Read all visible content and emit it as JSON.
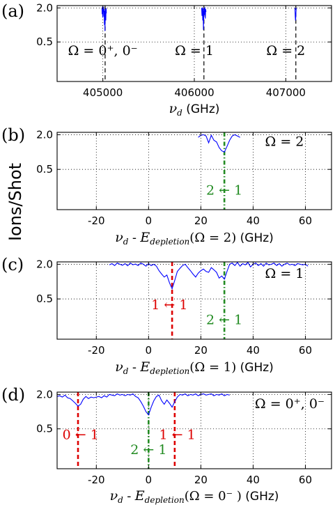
{
  "figure": {
    "ylabel": "Ions/Shot"
  },
  "chart_data": [
    {
      "id": "a",
      "panel_label": "(a)",
      "type": "line",
      "xlim": [
        404500,
        407500
      ],
      "ylim": [
        0.1,
        2.2
      ],
      "yscale": "log",
      "xticks": [
        405000,
        406000,
        407000
      ],
      "xtick_labels": [
        "405000",
        "406000",
        "407000"
      ],
      "yticks": [
        2.0,
        0.5
      ],
      "ytick_labels": [
        "2.0",
        "0.5"
      ],
      "grid": true,
      "xlabel": {
        "var": "ν",
        "sub": "d",
        "rest": " (GHz)"
      },
      "series_color": "#0000ff",
      "series": [
        {
          "x": [
            404990,
            404993,
            404996,
            404999,
            405002,
            405005,
            405008,
            405011,
            405014,
            405017,
            405020,
            405023,
            405026,
            405029,
            405032,
            405035,
            405038
          ],
          "y": [
            2.0,
            1.55,
            2.1,
            1.35,
            2.0,
            1.7,
            2.1,
            1.4,
            1.9,
            1.0,
            1.8,
            0.78,
            1.6,
            1.9,
            1.2,
            2.0,
            1.6
          ]
        },
        {
          "x": [
            406080,
            406084,
            406088,
            406092,
            406096,
            406100,
            406104,
            406108,
            406112,
            406116,
            406120,
            406124,
            406128
          ],
          "y": [
            2.0,
            1.45,
            2.05,
            1.2,
            1.95,
            0.82,
            1.7,
            2.0,
            1.5,
            2.05,
            1.3,
            1.9,
            1.7
          ]
        },
        {
          "x": [
            407100,
            407103,
            407106,
            407109,
            407112,
            407115
          ],
          "y": [
            2.0,
            1.4,
            1.2,
            1.3,
            1.7,
            2.0
          ]
        }
      ],
      "markers": [
        {
          "x": 405025,
          "color": "#000000",
          "style": "dash"
        },
        {
          "x": 406105,
          "color": "#000000",
          "style": "dash"
        },
        {
          "x": 407110,
          "color": "#000000",
          "style": "dash"
        }
      ],
      "annotations": [
        {
          "x": 405000,
          "y": 0.36,
          "text": "Ω = 0⁺, 0⁻",
          "color": "#000000"
        },
        {
          "x": 406000,
          "y": 0.36,
          "text": "Ω = 1",
          "color": "#000000"
        },
        {
          "x": 407000,
          "y": 0.36,
          "text": "Ω = 2",
          "color": "#000000"
        }
      ]
    },
    {
      "id": "b",
      "panel_label": "(b)",
      "type": "line",
      "xlim": [
        -35,
        70
      ],
      "ylim": [
        0.1,
        2.2
      ],
      "yscale": "log",
      "xticks": [
        -20,
        0,
        20,
        40,
        60
      ],
      "xtick_labels": [
        "-20",
        "0",
        "20",
        "40",
        "60"
      ],
      "yticks": [
        2.0,
        0.5
      ],
      "ytick_labels": [
        "2.0",
        "0.5"
      ],
      "grid": true,
      "xlabel": {
        "var": "ν",
        "sub": "d",
        "mid": " - ",
        "var2": "E",
        "sub2": "depletion",
        "arg": "(Ω = 2)",
        "rest": " (GHz)"
      },
      "series_color": "#0000ff",
      "series": [
        {
          "x": [
            19,
            20,
            21,
            22,
            23,
            24,
            25,
            26,
            27,
            28,
            29,
            30,
            31,
            32,
            33,
            34,
            35
          ],
          "y": [
            1.8,
            1.95,
            2.0,
            1.9,
            1.45,
            1.95,
            1.6,
            1.5,
            1.2,
            1.05,
            1.0,
            1.25,
            1.6,
            1.9,
            2.0,
            1.9,
            1.8
          ]
        }
      ],
      "markers": [
        {
          "x": 29,
          "color": "#228b22",
          "style": "dashdot"
        }
      ],
      "annotations": [
        {
          "x": 29,
          "y": 0.22,
          "text": "2 ← 1",
          "color": "#228b22"
        },
        {
          "x": 52,
          "y": 1.55,
          "text": "Ω = 2",
          "color": "#000000"
        }
      ]
    },
    {
      "id": "c",
      "panel_label": "(c)",
      "type": "line",
      "xlim": [
        -35,
        70
      ],
      "ylim": [
        0.1,
        2.2
      ],
      "yscale": "log",
      "xticks": [
        -20,
        0,
        20,
        40,
        60
      ],
      "xtick_labels": [
        "-20",
        "0",
        "20",
        "40",
        "60"
      ],
      "yticks": [
        2.0,
        0.5
      ],
      "ytick_labels": [
        "2.0",
        "0.5"
      ],
      "grid": true,
      "xlabel": {
        "var": "ν",
        "sub": "d",
        "mid": " - ",
        "var2": "E",
        "sub2": "depletion",
        "arg": "(Ω = 1)",
        "rest": " (GHz)"
      },
      "series_color": "#0000ff",
      "series": [
        {
          "x": [
            -15,
            -14,
            -13,
            -12,
            -11,
            -10,
            -9,
            -8,
            -7,
            -6,
            -5,
            -4,
            -3,
            -2,
            -1,
            0,
            1,
            2,
            3,
            4,
            5,
            6,
            7,
            8,
            9,
            10,
            11,
            12,
            13,
            14,
            15,
            16,
            17,
            18,
            19,
            20,
            21,
            22,
            23,
            24,
            25,
            26,
            27,
            28,
            29,
            30,
            31,
            32,
            33,
            34,
            35,
            36,
            37,
            38,
            39,
            40,
            41,
            42,
            43,
            44,
            45,
            46,
            47,
            48,
            49,
            50,
            51,
            52,
            53,
            54,
            55,
            56,
            57,
            58,
            59,
            60,
            61
          ],
          "y": [
            1.95,
            2.05,
            1.9,
            2.1,
            2.0,
            1.92,
            2.05,
            1.88,
            2.1,
            1.96,
            2.02,
            1.9,
            2.1,
            2.0,
            1.85,
            2.05,
            1.9,
            2.0,
            1.85,
            1.55,
            1.35,
            1.2,
            1.3,
            0.95,
            0.75,
            1.05,
            1.5,
            1.7,
            1.9,
            2.0,
            1.75,
            1.55,
            1.35,
            1.2,
            1.4,
            1.55,
            1.65,
            1.5,
            1.45,
            1.75,
            1.6,
            1.45,
            1.15,
            1.25,
            1.1,
            1.5,
            2.0,
            2.1,
            1.9,
            2.15,
            1.85,
            2.05,
            1.95,
            2.15,
            1.8,
            2.0,
            2.1,
            1.9,
            2.05,
            1.85,
            2.1,
            1.95,
            2.0,
            2.1,
            1.9,
            2.05,
            1.85,
            2.0,
            2.1,
            1.95,
            2.0,
            1.9,
            2.05,
            2.0,
            1.95,
            2.0,
            1.85
          ]
        }
      ],
      "markers": [
        {
          "x": 9,
          "color": "#dd0000",
          "style": "dash"
        },
        {
          "x": 29,
          "color": "#228b22",
          "style": "dashdot"
        }
      ],
      "annotations": [
        {
          "x": 8,
          "y": 0.4,
          "text": "1 ← 1",
          "color": "#dd0000"
        },
        {
          "x": 29,
          "y": 0.22,
          "text": "2 ← 1",
          "color": "#228b22"
        },
        {
          "x": 52,
          "y": 1.4,
          "text": "Ω = 1",
          "color": "#000000"
        }
      ]
    },
    {
      "id": "d",
      "panel_label": "(d)",
      "type": "line",
      "xlim": [
        -35,
        70
      ],
      "ylim": [
        0.1,
        2.2
      ],
      "yscale": "log",
      "xticks": [
        -20,
        0,
        20,
        40,
        60
      ],
      "xtick_labels": [
        "-20",
        "0",
        "20",
        "40",
        "60"
      ],
      "yticks": [
        2.0,
        0.5
      ],
      "ytick_labels": [
        "2.0",
        "0.5"
      ],
      "grid": true,
      "xlabel": {
        "var": "ν",
        "sub": "d",
        "mid": " - ",
        "var2": "E",
        "sub2": "depletion",
        "arg": "(Ω = 0⁻ )",
        "rest": " (GHz)"
      },
      "series_color": "#0000ff",
      "series": [
        {
          "x": [
            -35,
            -34,
            -33,
            -32,
            -31,
            -30,
            -29,
            -28,
            -27,
            -26,
            -25,
            -24,
            -23,
            -22,
            -21,
            -20,
            -19,
            -18,
            -17,
            -16,
            -15,
            -14,
            -13,
            -12,
            -11,
            -10,
            -9,
            -8,
            -7,
            -6,
            -5,
            -4,
            -3,
            -2,
            -1,
            0,
            1,
            2,
            3,
            4,
            5,
            6,
            7,
            8,
            9,
            10,
            11,
            12,
            13,
            14,
            15,
            16,
            17,
            18,
            19,
            20,
            21,
            22,
            23,
            24,
            25,
            26,
            27,
            28,
            29,
            30,
            31
          ],
          "y": [
            1.85,
            1.9,
            1.8,
            1.95,
            1.75,
            1.7,
            1.55,
            1.4,
            1.25,
            1.35,
            1.65,
            1.85,
            1.7,
            1.8,
            1.75,
            1.8,
            1.85,
            1.75,
            1.9,
            1.8,
            2.0,
            1.95,
            1.9,
            2.05,
            1.95,
            2.0,
            1.9,
            2.0,
            1.95,
            2.05,
            1.85,
            1.75,
            1.5,
            1.25,
            1.0,
            0.88,
            1.2,
            1.55,
            1.85,
            1.95,
            1.55,
            1.35,
            1.6,
            1.4,
            1.2,
            1.5,
            1.8,
            2.0,
            1.95,
            2.05,
            1.9,
            2.0,
            1.95,
            2.05,
            1.9,
            2.0,
            2.05,
            1.95,
            2.0,
            2.05,
            1.9,
            2.0,
            1.95,
            2.05,
            1.9,
            2.0,
            1.95
          ]
        }
      ],
      "markers": [
        {
          "x": -27,
          "color": "#dd0000",
          "style": "dash"
        },
        {
          "x": 0,
          "color": "#228b22",
          "style": "dashdot"
        },
        {
          "x": 10,
          "color": "#dd0000",
          "style": "dash"
        }
      ],
      "annotations": [
        {
          "x": -26,
          "y": 0.4,
          "text": "0 ← 1",
          "color": "#dd0000"
        },
        {
          "x": 0,
          "y": 0.22,
          "text": "2 ← 1",
          "color": "#228b22"
        },
        {
          "x": 11,
          "y": 0.4,
          "text": "1 ← 1",
          "color": "#dd0000"
        },
        {
          "x": 54,
          "y": 1.4,
          "text": "Ω = 0⁺, 0⁻",
          "color": "#000000"
        }
      ]
    }
  ]
}
